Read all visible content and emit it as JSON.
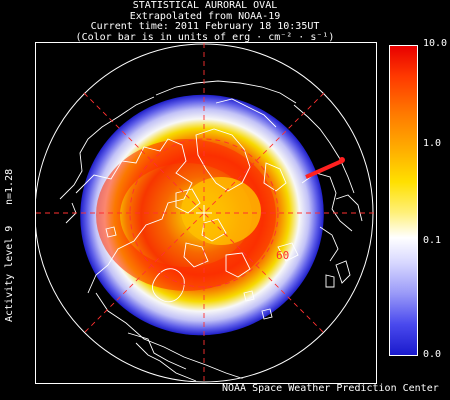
{
  "header": {
    "title": "STATISTICAL AURORAL OVAL",
    "line2": "Extrapolated from NOAA-19",
    "line3": "Current time: 2011 February 18 10:35UT",
    "line4": "(Color bar is in units of erg · cm⁻² · s⁻¹)"
  },
  "side": {
    "n_label": "n=1.28",
    "activity_label": "Activity level 9"
  },
  "map": {
    "latitude_label": "60",
    "sun_marker_color": "#ff2020",
    "grid_color": "#ff3030",
    "coast_color": "#ffffff"
  },
  "colorbar": {
    "labels": [
      "10.0",
      "1.0",
      "0.1",
      "0.0"
    ],
    "values": [
      10.0,
      1.0,
      0.1,
      0.0
    ],
    "colors": [
      "#e80000",
      "#ffb000",
      "#ffffff",
      "#1a1acc"
    ]
  },
  "footer": {
    "credit": "NOAA Space Weather Prediction Center"
  }
}
